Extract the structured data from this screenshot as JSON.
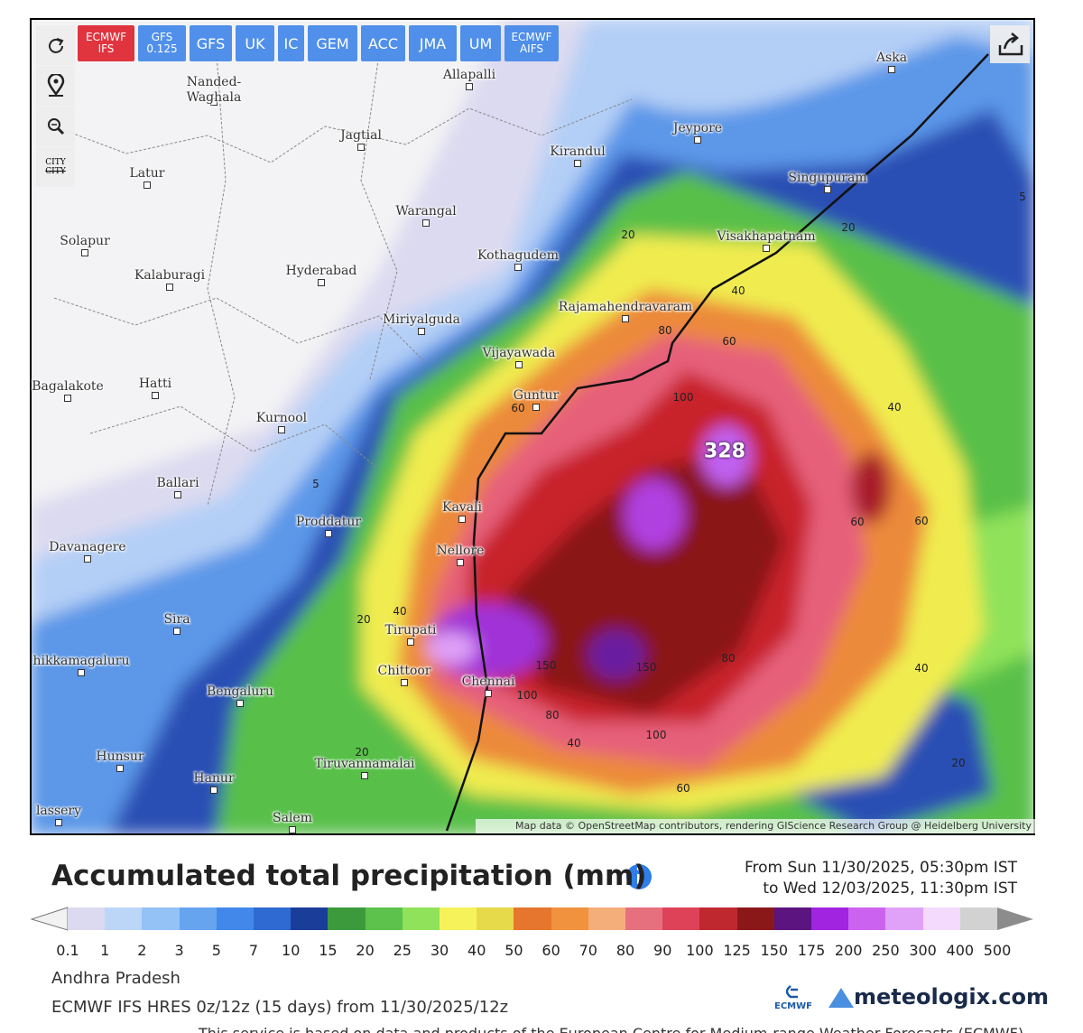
{
  "toolbar": {
    "models": [
      "ECMWF IFS",
      "GFS 0.125",
      "GFS",
      "UK",
      "IC",
      "GEM",
      "ACC",
      "JMA",
      "UM",
      "ECMWF AIFS"
    ],
    "city_toggle": "CITY"
  },
  "map": {
    "cities": [
      "Allapalli",
      "Nanded-Waghala",
      "Jagtial",
      "Kirandul",
      "Jeypore",
      "Aska",
      "Latur",
      "Singupuram",
      "Warangal",
      "Visakhapatnam",
      "Solapur",
      "Kothagudem",
      "Kalaburagi",
      "Hyderabad",
      "Rajamahendravaram",
      "Miriyalguda",
      "Vijayawada",
      "Bagalakote",
      "Hatti",
      "Guntur",
      "Kurnool",
      "Ballari",
      "Kavali",
      "Proddatur",
      "Davanagere",
      "Nellore",
      "Sira",
      "Tirupati",
      "Chittoor",
      "hikkamagaluru",
      "Bengaluru",
      "Chennai",
      "Hunsur",
      "Tiruvannamalai",
      "Hanur",
      "Salem",
      "lassery"
    ],
    "contour_labels": [
      20,
      20,
      40,
      60,
      80,
      100,
      60,
      40,
      60,
      60,
      5,
      5,
      20,
      40,
      150,
      150,
      100,
      80,
      40,
      100,
      80,
      40,
      20,
      60,
      20
    ],
    "peak_label": 328,
    "attribution": "Map data © OpenStreetMap contributors, rendering GIScience Research Group @ Heidelberg University"
  },
  "legend": {
    "title": "Accumulated total precipitation (mm)",
    "period": [
      "From Sun 11/30/2025, 05:30pm IST",
      "to Wed 12/03/2025, 11:30pm IST"
    ],
    "ticks": [
      0.1,
      1,
      2,
      3,
      5,
      7,
      10,
      15,
      20,
      25,
      30,
      40,
      50,
      60,
      70,
      80,
      90,
      100,
      125,
      150,
      175,
      200,
      250,
      300,
      400,
      500
    ],
    "colors": [
      "#dcdaf0",
      "#bcd6f8",
      "#94c2f6",
      "#66a4f0",
      "#4288ea",
      "#2f6ad2",
      "#1b3d9a",
      "#3c9a3c",
      "#5cc24c",
      "#90e25a",
      "#f6f25a",
      "#e6da4a",
      "#e6762e",
      "#f0923e",
      "#f4ae7a",
      "#e6707e",
      "#de4258",
      "#c02830",
      "#8a1818",
      "#5c1480",
      "#a024e0",
      "#cc62f0",
      "#e0a2f8",
      "#f4dafc",
      "#d2d2d2"
    ]
  },
  "footer": {
    "region": "Andhra Pradesh",
    "run": "ECMWF IFS HRES 0z/12z (15 days) from 11/30/2025/12z",
    "ecmwf_logo": "ECMWF",
    "brand": "meteologix.com",
    "disclaimer": "This service is based on data and products of the European Centre for Medium-range Weather Forecasts (ECMWF)"
  }
}
